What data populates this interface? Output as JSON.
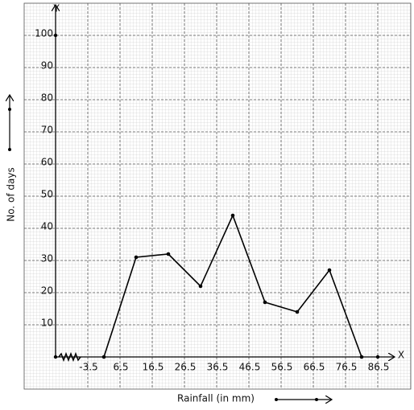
{
  "chart_data": {
    "type": "line",
    "x_label": "Rainfall (in mm)",
    "y_label": "No. of days",
    "x_axis_name": "X",
    "y_axis_name": "Y",
    "x": [
      1.5,
      11.5,
      21.5,
      31.5,
      41.5,
      51.5,
      61.5,
      71.5,
      81.5
    ],
    "series": [
      {
        "name": "Frequency polygon",
        "color": "#000000",
        "values": [
          0,
          31,
          32,
          22,
          44,
          17,
          14,
          27,
          0
        ]
      }
    ],
    "xlim": [
      -13.5,
      96.5
    ],
    "xticks": [
      -3.5,
      6.5,
      16.5,
      26.5,
      36.5,
      46.5,
      56.5,
      66.5,
      76.5,
      86.5
    ],
    "ylim": [
      0,
      110
    ],
    "yticks": [
      10,
      20,
      30,
      40,
      50,
      60,
      70,
      80,
      90,
      100
    ],
    "grid": true
  }
}
